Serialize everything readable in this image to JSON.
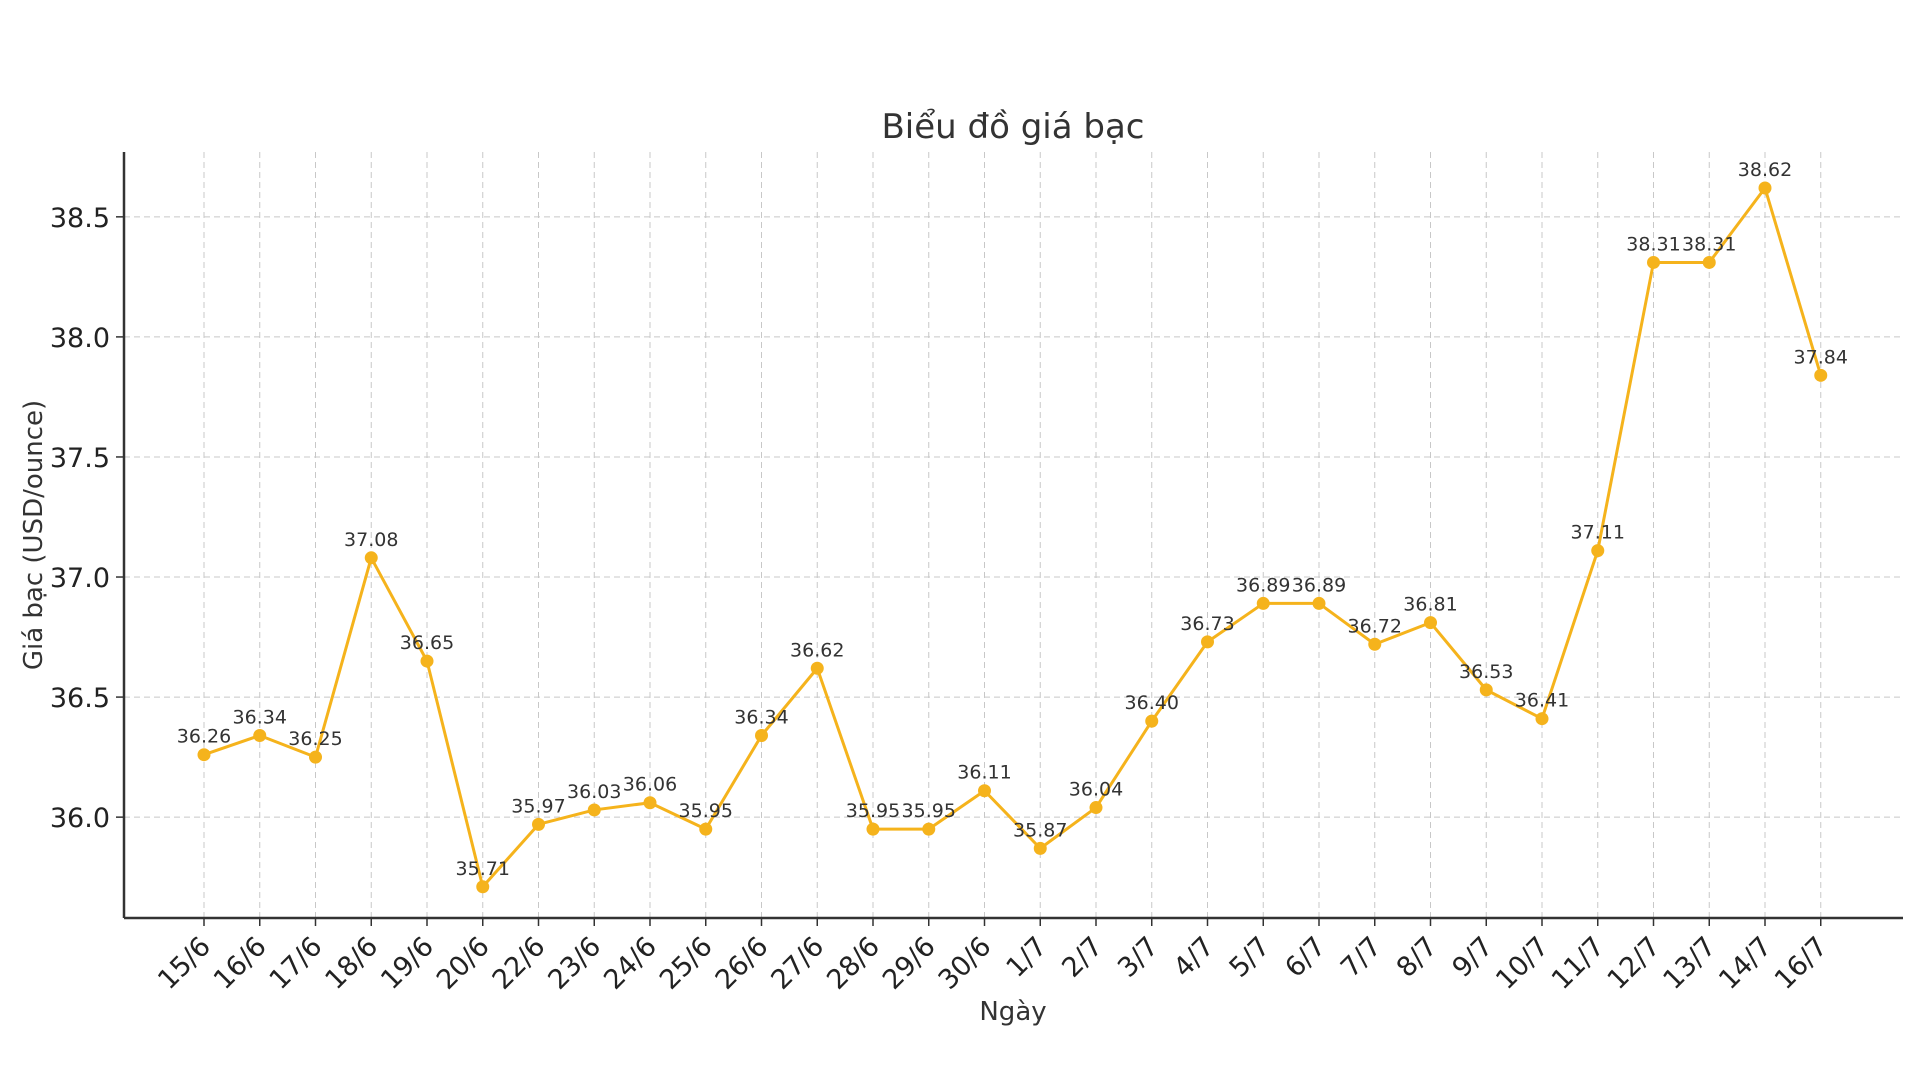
{
  "chart_data": {
    "type": "line",
    "title": "Biểu đồ giá bạc",
    "xlabel": "Ngày",
    "ylabel": "Giá bạc (USD/ounce)",
    "categories": [
      "15/6",
      "16/6",
      "17/6",
      "18/6",
      "19/6",
      "20/6",
      "22/6",
      "23/6",
      "24/6",
      "25/6",
      "26/6",
      "27/6",
      "28/6",
      "29/6",
      "30/6",
      "1/7",
      "2/7",
      "3/7",
      "4/7",
      "5/7",
      "6/7",
      "7/7",
      "8/7",
      "9/7",
      "10/7",
      "11/7",
      "12/7",
      "13/7",
      "14/7",
      "16/7"
    ],
    "values": [
      36.26,
      36.34,
      36.25,
      37.08,
      36.65,
      35.71,
      35.97,
      36.03,
      36.06,
      35.95,
      36.34,
      36.62,
      35.95,
      35.95,
      36.11,
      35.87,
      36.04,
      36.4,
      36.73,
      36.89,
      36.89,
      36.72,
      36.81,
      36.53,
      36.41,
      37.11,
      38.31,
      38.31,
      38.62,
      37.84
    ],
    "value_labels": [
      "36.26",
      "36.34",
      "36.25",
      "37.08",
      "36.65",
      "35.71",
      "35.97",
      "36.03",
      "36.06",
      "35.95",
      "36.34",
      "36.62",
      "35.95",
      "35.95",
      "36.11",
      "35.87",
      "36.04",
      "36.40",
      "36.73",
      "36.89",
      "36.89",
      "36.72",
      "36.81",
      "36.53",
      "36.41",
      "37.11",
      "38.31",
      "38.31",
      "38.62",
      "37.84"
    ],
    "yticks": [
      "36.0",
      "36.5",
      "37.0",
      "37.5",
      "38.0",
      "38.5"
    ],
    "ylim": [
      35.58,
      38.77
    ],
    "grid": true,
    "legend": "none",
    "color": "#f5b31c"
  }
}
